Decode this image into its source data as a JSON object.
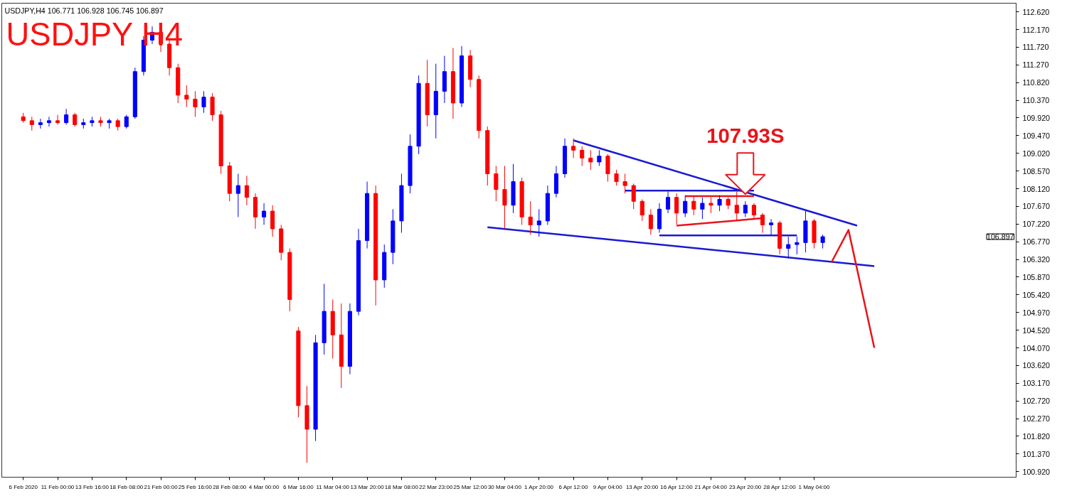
{
  "chart_data": {
    "type": "candlestick",
    "title": "USDJPY H4",
    "subtitle": "USDJPY,H4  106.771 106.928 106.745 106.897",
    "annotations": [
      {
        "text": "107.93S",
        "x": "23 Apr 20:00",
        "y": 107.93
      },
      "106.897"
    ],
    "categories": [
      "6 Feb 2020",
      null,
      null,
      null,
      "11 Feb 00:00",
      null,
      null,
      null,
      "13 Feb 16:00",
      null,
      null,
      null,
      "18 Feb 08:00",
      null,
      null,
      null,
      "21 Feb 00:00",
      null,
      null,
      null,
      "25 Feb 16:00",
      null,
      null,
      null,
      "28 Feb 08:00",
      null,
      null,
      null,
      "4 Mar 00:00",
      null,
      null,
      null,
      "6 Mar 16:00",
      null,
      null,
      null,
      "11 Mar 04:00",
      null,
      null,
      null,
      "13 Mar 20:00",
      null,
      null,
      null,
      "18 Mar 08:00",
      null,
      null,
      null,
      "22 Mar 23:00",
      null,
      null,
      null,
      "25 Mar 12:00",
      null,
      null,
      null,
      "30 Mar 04:00",
      null,
      null,
      null,
      "1 Apr 20:00",
      null,
      null,
      null,
      "6 Apr 12:00",
      null,
      null,
      null,
      "9 Apr 04:00",
      null,
      null,
      null,
      "13 Apr 20:00",
      null,
      null,
      null,
      "16 Apr 12:00",
      null,
      null,
      null,
      "21 Apr 04:00",
      null,
      null,
      null,
      "23 Apr 20:00",
      null,
      null,
      null,
      "28 Apr 12:00",
      null,
      null,
      null,
      "1 May 04:00",
      null,
      null,
      null,
      null,
      null,
      null,
      null,
      null,
      null,
      null,
      null,
      null,
      null,
      null,
      null,
      null,
      null,
      null,
      null,
      null,
      null,
      null,
      null
    ],
    "ohlc": [
      [
        109.95,
        110.05,
        109.8,
        109.85
      ],
      [
        109.85,
        109.95,
        109.6,
        109.75
      ],
      [
        109.75,
        109.9,
        109.65,
        109.8
      ],
      [
        109.8,
        109.95,
        109.7,
        109.85
      ],
      [
        109.85,
        110.0,
        109.75,
        109.8
      ],
      [
        109.8,
        110.15,
        109.75,
        110.0
      ],
      [
        110.0,
        110.05,
        109.7,
        109.75
      ],
      [
        109.75,
        109.9,
        109.65,
        109.8
      ],
      [
        109.8,
        109.95,
        109.7,
        109.85
      ],
      [
        109.85,
        109.95,
        109.7,
        109.8
      ],
      [
        109.8,
        109.9,
        109.65,
        109.85
      ],
      [
        109.85,
        109.9,
        109.6,
        109.7
      ],
      [
        109.7,
        110.0,
        109.65,
        109.95
      ],
      [
        109.95,
        111.2,
        109.9,
        111.1
      ],
      [
        111.1,
        112.0,
        111.0,
        111.9
      ],
      [
        111.9,
        112.25,
        111.8,
        112.1
      ],
      [
        112.1,
        112.2,
        111.6,
        111.8
      ],
      [
        111.8,
        111.95,
        111.0,
        111.2
      ],
      [
        111.2,
        111.3,
        110.3,
        110.5
      ],
      [
        110.5,
        110.75,
        110.2,
        110.4
      ],
      [
        110.4,
        110.6,
        109.95,
        110.2
      ],
      [
        110.2,
        110.6,
        110.05,
        110.45
      ],
      [
        110.45,
        110.55,
        109.85,
        110.0
      ],
      [
        110.0,
        110.1,
        108.5,
        108.7
      ],
      [
        108.7,
        108.8,
        107.8,
        108.0
      ],
      [
        108.0,
        108.5,
        107.4,
        108.2
      ],
      [
        108.2,
        108.45,
        107.7,
        107.9
      ],
      [
        107.9,
        108.0,
        107.1,
        107.4
      ],
      [
        107.4,
        107.75,
        107.2,
        107.55
      ],
      [
        107.55,
        107.7,
        106.9,
        107.1
      ],
      [
        107.1,
        107.2,
        106.3,
        106.5
      ],
      [
        106.5,
        106.6,
        105.0,
        105.3
      ],
      [
        104.5,
        104.6,
        102.3,
        102.6
      ],
      [
        102.6,
        103.1,
        101.15,
        102.0
      ],
      [
        102.0,
        104.4,
        101.7,
        104.2
      ],
      [
        104.2,
        105.7,
        103.9,
        105.0
      ],
      [
        105.0,
        105.3,
        103.8,
        104.4
      ],
      [
        104.4,
        105.2,
        103.05,
        103.6
      ],
      [
        103.6,
        105.2,
        103.4,
        105.0
      ],
      [
        105.0,
        107.1,
        104.9,
        106.8
      ],
      [
        106.8,
        108.3,
        106.6,
        108.0
      ],
      [
        108.0,
        108.2,
        105.15,
        105.8
      ],
      [
        105.8,
        106.7,
        105.6,
        106.5
      ],
      [
        106.5,
        107.6,
        106.2,
        107.3
      ],
      [
        107.3,
        108.5,
        107.0,
        108.2
      ],
      [
        108.2,
        109.5,
        108.0,
        109.2
      ],
      [
        109.2,
        111.0,
        109.0,
        110.8
      ],
      [
        110.8,
        111.4,
        109.7,
        110.0
      ],
      [
        110.0,
        111.3,
        109.4,
        110.6
      ],
      [
        110.6,
        111.5,
        110.3,
        111.1
      ],
      [
        111.1,
        111.7,
        109.9,
        110.3
      ],
      [
        110.3,
        111.75,
        110.2,
        111.5
      ],
      [
        111.5,
        111.65,
        110.7,
        110.9
      ],
      [
        110.9,
        111.0,
        109.4,
        109.6
      ],
      [
        109.6,
        109.7,
        108.2,
        108.5
      ],
      [
        108.5,
        108.7,
        107.8,
        108.1
      ],
      [
        108.1,
        108.7,
        107.1,
        107.7
      ],
      [
        107.7,
        108.75,
        107.5,
        108.3
      ],
      [
        108.3,
        108.4,
        107.2,
        107.4
      ],
      [
        107.4,
        107.8,
        106.95,
        107.2
      ],
      [
        107.2,
        107.6,
        106.9,
        107.3
      ],
      [
        107.3,
        108.2,
        107.2,
        108.0
      ],
      [
        108.0,
        108.7,
        107.9,
        108.5
      ],
      [
        108.5,
        109.4,
        108.4,
        109.2
      ],
      [
        109.2,
        109.4,
        108.9,
        109.1
      ],
      [
        109.1,
        109.2,
        108.7,
        108.9
      ],
      [
        108.9,
        109.1,
        108.6,
        108.8
      ],
      [
        108.8,
        109.1,
        108.7,
        108.95
      ],
      [
        108.95,
        109.0,
        108.3,
        108.5
      ],
      [
        108.5,
        108.6,
        108.2,
        108.3
      ],
      [
        108.3,
        108.5,
        108.0,
        108.2
      ],
      [
        108.2,
        108.25,
        107.6,
        107.8
      ],
      [
        107.8,
        107.85,
        107.3,
        107.45
      ],
      [
        107.45,
        107.6,
        106.95,
        107.1
      ],
      [
        107.1,
        107.75,
        107.0,
        107.6
      ],
      [
        107.6,
        108.05,
        107.5,
        107.9
      ],
      [
        107.9,
        108.0,
        107.2,
        107.5
      ],
      [
        107.5,
        107.95,
        107.4,
        107.8
      ],
      [
        107.8,
        107.95,
        107.45,
        107.6
      ],
      [
        107.6,
        107.9,
        107.35,
        107.75
      ],
      [
        107.75,
        107.9,
        107.5,
        107.7
      ],
      [
        107.7,
        107.95,
        107.55,
        107.85
      ],
      [
        107.85,
        107.9,
        107.6,
        107.7
      ],
      [
        107.7,
        108.05,
        107.3,
        107.5
      ],
      [
        107.5,
        107.8,
        107.4,
        107.7
      ],
      [
        107.7,
        107.75,
        107.35,
        107.45
      ],
      [
        107.45,
        107.5,
        107.0,
        107.2
      ],
      [
        107.2,
        107.35,
        106.95,
        107.25
      ],
      [
        107.25,
        107.3,
        106.45,
        106.6
      ],
      [
        106.6,
        106.9,
        106.35,
        106.7
      ],
      [
        106.7,
        106.9,
        106.45,
        106.75
      ],
      [
        106.75,
        107.55,
        106.5,
        107.3
      ],
      [
        107.3,
        107.35,
        106.6,
        106.75
      ],
      [
        106.75,
        106.95,
        106.6,
        106.9
      ],
      null,
      null,
      null,
      null,
      null,
      null,
      null,
      null,
      null,
      null,
      null,
      null,
      null,
      null,
      null,
      null,
      null,
      null,
      null,
      null,
      null,
      null
    ],
    "colors": [
      "#ff0000",
      "#ff0000",
      "#0000ff",
      "#0000ff",
      "#ff0000",
      "#0000ff",
      "#ff0000",
      "#0000ff",
      "#0000ff",
      "#ff0000",
      "#0000ff",
      "#ff0000",
      "#0000ff",
      "#0000ff",
      "#0000ff",
      "#0000ff",
      "#ff0000",
      "#ff0000",
      "#ff0000",
      "#ff0000",
      "#ff0000",
      "#0000ff",
      "#ff0000",
      "#ff0000",
      "#ff0000",
      "#0000ff",
      "#ff0000",
      "#ff0000",
      "#0000ff",
      "#ff0000",
      "#ff0000",
      "#ff0000",
      "#ff0000",
      "#ff0000",
      "#0000ff",
      "#0000ff",
      "#ff0000",
      "#ff0000",
      "#0000ff",
      "#0000ff",
      "#0000ff",
      "#ff0000",
      "#0000ff",
      "#0000ff",
      "#0000ff",
      "#0000ff",
      "#0000ff",
      "#ff0000",
      "#0000ff",
      "#0000ff",
      "#ff0000",
      "#0000ff",
      "#ff0000",
      "#ff0000",
      "#ff0000",
      "#ff0000",
      "#ff0000",
      "#0000ff",
      "#ff0000",
      "#ff0000",
      "#0000ff",
      "#0000ff",
      "#0000ff",
      "#0000ff",
      "#ff0000",
      "#ff0000",
      "#ff0000",
      "#0000ff",
      "#ff0000",
      "#ff0000",
      "#ff0000",
      "#ff0000",
      "#ff0000",
      "#ff0000",
      "#0000ff",
      "#0000ff",
      "#ff0000",
      "#0000ff",
      "#ff0000",
      "#0000ff",
      "#ff0000",
      "#0000ff",
      "#ff0000",
      "#ff0000",
      "#0000ff",
      "#ff0000",
      "#ff0000",
      "#0000ff",
      "#ff0000",
      "#0000ff",
      "#0000ff",
      "#0000ff",
      "#ff0000",
      "#0000ff",
      null,
      null,
      null,
      null,
      null,
      null,
      null,
      null,
      null,
      null,
      null,
      null,
      null,
      null,
      null,
      null,
      null,
      null,
      null,
      null,
      null,
      null
    ],
    "series": [
      {
        "type": "line",
        "color": "#1a1ad4",
        "values": [
          null,
          null,
          null,
          null,
          null,
          null,
          null,
          null,
          null,
          null,
          null,
          null,
          null,
          null,
          null,
          null,
          null,
          null,
          null,
          null,
          null,
          null,
          null,
          null,
          null,
          null,
          null,
          null,
          null,
          null,
          null,
          null,
          null,
          null,
          null,
          null,
          null,
          null,
          null,
          null,
          null,
          null,
          null,
          null,
          null,
          null,
          null,
          null,
          null,
          null,
          null,
          null,
          null,
          null,
          null,
          null,
          null,
          null,
          null,
          null,
          null,
          null,
          null,
          null,
          109.35,
          null,
          null,
          null,
          null,
          null,
          null,
          null,
          null,
          null,
          null,
          null,
          null,
          null,
          null,
          null,
          null,
          null,
          null,
          null,
          null,
          null,
          null,
          null,
          null,
          null,
          null,
          null,
          null,
          null,
          null,
          null,
          null,
          107.18,
          null,
          null,
          null,
          null,
          null,
          null,
          null,
          null,
          null,
          null,
          null,
          null,
          null,
          null,
          null,
          null,
          null,
          null
        ]
      },
      {
        "type": "line",
        "color": "#1a1ad4",
        "values": [
          null,
          null,
          null,
          null,
          null,
          null,
          null,
          null,
          null,
          null,
          null,
          null,
          null,
          null,
          null,
          null,
          null,
          null,
          null,
          null,
          null,
          null,
          null,
          null,
          null,
          null,
          null,
          null,
          null,
          null,
          null,
          null,
          null,
          null,
          null,
          null,
          null,
          null,
          null,
          null,
          null,
          null,
          null,
          null,
          null,
          null,
          null,
          null,
          null,
          null,
          null,
          null,
          null,
          null,
          107.14,
          null,
          null,
          null,
          null,
          null,
          null,
          null,
          null,
          null,
          null,
          null,
          null,
          null,
          null,
          null,
          null,
          null,
          null,
          null,
          null,
          null,
          null,
          null,
          null,
          null,
          null,
          null,
          null,
          null,
          null,
          null,
          null,
          null,
          null,
          null,
          null,
          null,
          null,
          null,
          null,
          null,
          null,
          null,
          null,
          106.15,
          null,
          null,
          null,
          null,
          null,
          null,
          null,
          null,
          null,
          null,
          null,
          null,
          null,
          null,
          null,
          null
        ]
      },
      {
        "type": "line",
        "color": "#1a1ad4",
        "values": [
          null,
          null,
          null,
          null,
          null,
          null,
          null,
          null,
          null,
          null,
          null,
          null,
          null,
          null,
          null,
          null,
          null,
          null,
          null,
          null,
          null,
          null,
          null,
          null,
          null,
          null,
          null,
          null,
          null,
          null,
          null,
          null,
          null,
          null,
          null,
          null,
          null,
          null,
          null,
          null,
          null,
          null,
          null,
          null,
          null,
          null,
          null,
          null,
          null,
          null,
          null,
          null,
          null,
          null,
          null,
          null,
          null,
          null,
          null,
          null,
          null,
          null,
          null,
          null,
          null,
          null,
          null,
          null,
          null,
          null,
          108.07,
          null,
          null,
          null,
          null,
          null,
          null,
          null,
          null,
          null,
          null,
          null,
          null,
          null,
          null,
          108.07,
          null,
          null,
          null,
          null,
          null,
          null,
          null,
          null,
          null,
          null,
          null,
          null,
          null,
          null,
          null,
          null,
          null,
          null,
          null,
          null,
          null,
          null,
          null,
          null,
          null,
          null,
          null,
          null,
          null,
          null
        ]
      },
      {
        "type": "line",
        "color": "#1a1ad4",
        "values": [
          null,
          null,
          null,
          null,
          null,
          null,
          null,
          null,
          null,
          null,
          null,
          null,
          null,
          null,
          null,
          null,
          null,
          null,
          null,
          null,
          null,
          null,
          null,
          null,
          null,
          null,
          null,
          null,
          null,
          null,
          null,
          null,
          null,
          null,
          null,
          null,
          null,
          null,
          null,
          null,
          null,
          null,
          null,
          null,
          null,
          null,
          null,
          null,
          null,
          null,
          null,
          null,
          null,
          null,
          null,
          null,
          null,
          null,
          null,
          null,
          null,
          null,
          null,
          null,
          null,
          null,
          null,
          null,
          null,
          null,
          null,
          null,
          null,
          null,
          106.93,
          null,
          null,
          null,
          null,
          null,
          null,
          null,
          null,
          null,
          null,
          null,
          null,
          null,
          null,
          null,
          106.93,
          null,
          null,
          null,
          null,
          null,
          null,
          null,
          null,
          null,
          null,
          null,
          null,
          null,
          null,
          null,
          null,
          null,
          null,
          null,
          null,
          null,
          null,
          null,
          null,
          null
        ]
      },
      {
        "type": "line",
        "color": "#e8141b",
        "values": [
          null,
          null,
          null,
          null,
          null,
          null,
          null,
          null,
          null,
          null,
          null,
          null,
          null,
          null,
          null,
          null,
          null,
          null,
          null,
          null,
          null,
          null,
          null,
          null,
          null,
          null,
          null,
          null,
          null,
          null,
          null,
          null,
          null,
          null,
          null,
          null,
          null,
          null,
          null,
          null,
          null,
          null,
          null,
          null,
          null,
          null,
          null,
          null,
          null,
          null,
          null,
          null,
          null,
          null,
          null,
          null,
          null,
          null,
          null,
          null,
          null,
          null,
          null,
          null,
          null,
          null,
          null,
          null,
          null,
          null,
          null,
          null,
          null,
          null,
          null,
          null,
          null,
          107.93,
          null,
          null,
          null,
          null,
          null,
          null,
          null,
          107.93,
          null,
          null,
          null,
          null,
          null,
          null,
          null,
          null,
          null,
          null,
          null,
          null,
          null,
          null,
          null,
          null,
          null,
          null,
          null,
          null,
          null,
          null,
          null,
          null,
          null,
          null,
          null,
          null,
          null,
          null
        ]
      },
      {
        "type": "line",
        "color": "#e8141b",
        "values": [
          null,
          null,
          null,
          null,
          null,
          null,
          null,
          null,
          null,
          null,
          null,
          null,
          null,
          null,
          null,
          null,
          null,
          null,
          null,
          null,
          null,
          null,
          null,
          null,
          null,
          null,
          null,
          null,
          null,
          null,
          null,
          null,
          null,
          null,
          null,
          null,
          null,
          null,
          null,
          null,
          null,
          null,
          null,
          null,
          null,
          null,
          null,
          null,
          null,
          null,
          null,
          null,
          null,
          null,
          null,
          null,
          null,
          null,
          null,
          null,
          null,
          null,
          null,
          null,
          null,
          null,
          null,
          null,
          null,
          null,
          null,
          null,
          null,
          null,
          null,
          null,
          107.18,
          null,
          null,
          null,
          null,
          null,
          null,
          null,
          null,
          null,
          107.37,
          null,
          null,
          null,
          null,
          null,
          null,
          null,
          null,
          null,
          null,
          null,
          null,
          null,
          null,
          null,
          null,
          null,
          null,
          null,
          null,
          null,
          null,
          null,
          null,
          null,
          null,
          null,
          null,
          null
        ]
      },
      {
        "type": "line",
        "color": "#e8141b",
        "values": [
          null,
          null,
          null,
          null,
          null,
          null,
          null,
          null,
          null,
          null,
          null,
          null,
          null,
          null,
          null,
          null,
          null,
          null,
          null,
          null,
          null,
          null,
          null,
          null,
          null,
          null,
          null,
          null,
          null,
          null,
          null,
          null,
          null,
          null,
          null,
          null,
          null,
          null,
          null,
          null,
          null,
          null,
          null,
          null,
          null,
          null,
          null,
          null,
          null,
          null,
          null,
          null,
          null,
          null,
          null,
          null,
          null,
          null,
          null,
          null,
          null,
          null,
          null,
          null,
          null,
          null,
          null,
          null,
          null,
          null,
          null,
          null,
          null,
          null,
          null,
          null,
          null,
          null,
          null,
          null,
          null,
          null,
          null,
          null,
          null,
          null,
          null,
          null,
          null,
          null,
          null,
          null,
          null,
          null,
          106.24,
          null,
          107.07,
          null,
          null,
          104.07,
          null,
          null,
          null,
          null,
          null,
          null,
          null,
          null,
          null,
          null,
          null,
          null,
          null,
          null,
          null,
          null
        ]
      }
    ],
    "ylim": [
      100.78,
      112.84
    ],
    "yticks": [
      {
        "value": 100.92,
        "label": "100.920"
      },
      {
        "value": 101.37,
        "label": "101.370"
      },
      {
        "value": 101.82,
        "label": "101.820"
      },
      {
        "value": 102.27,
        "label": "102.270"
      },
      {
        "value": 102.72,
        "label": "102.720"
      },
      {
        "value": 103.17,
        "label": "103.170"
      },
      {
        "value": 103.62,
        "label": "103.620"
      },
      {
        "value": 104.07,
        "label": "104.070"
      },
      {
        "value": 104.52,
        "label": "104.520"
      },
      {
        "value": 104.97,
        "label": "104.970"
      },
      {
        "value": 105.42,
        "label": "105.420"
      },
      {
        "value": 105.87,
        "label": "105.870"
      },
      {
        "value": 106.32,
        "label": "106.320"
      },
      {
        "value": 106.77,
        "label": "106.770"
      },
      {
        "value": 107.22,
        "label": "107.220"
      },
      {
        "value": 107.67,
        "label": "107.670"
      },
      {
        "value": 108.12,
        "label": "108.120"
      },
      {
        "value": 108.57,
        "label": "108.570"
      },
      {
        "value": 109.02,
        "label": "109.020"
      },
      {
        "value": 109.47,
        "label": "109.470"
      },
      {
        "value": 109.92,
        "label": "109.920"
      },
      {
        "value": 110.37,
        "label": "110.370"
      },
      {
        "value": 110.82,
        "label": "110.820"
      },
      {
        "value": 111.27,
        "label": "111.270"
      },
      {
        "value": 111.72,
        "label": "111.720"
      },
      {
        "value": 112.17,
        "label": "112.170"
      },
      {
        "value": 112.62,
        "label": "112.620"
      }
    ],
    "grid": false
  }
}
